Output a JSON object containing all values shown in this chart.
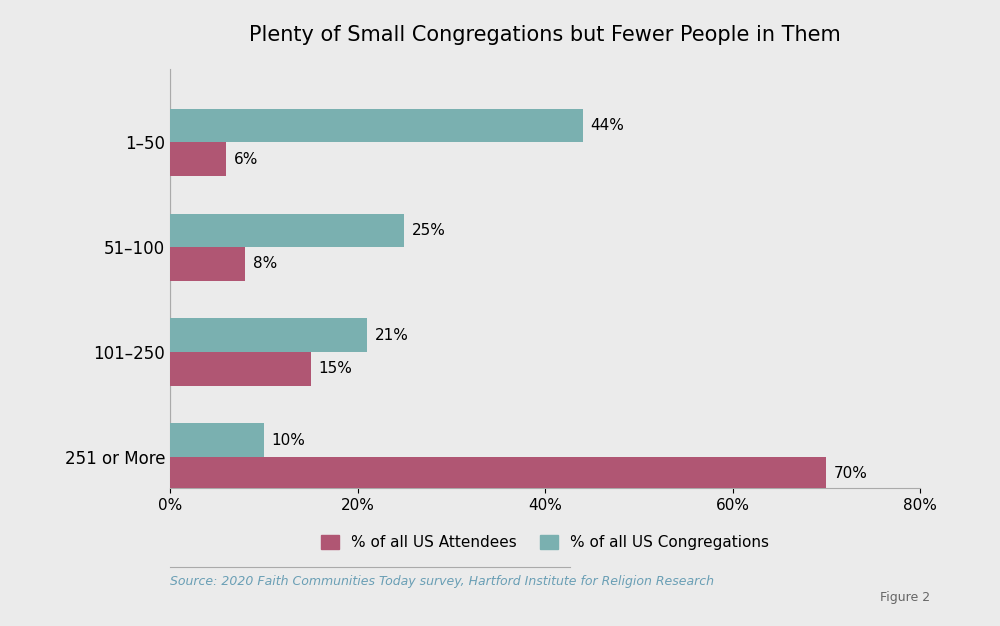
{
  "title": "Plenty of Small Congregations but Fewer People in Them",
  "categories": [
    "1–50",
    "51–100",
    "101–250",
    "251 or More"
  ],
  "attendees": [
    6,
    8,
    15,
    70
  ],
  "congregations": [
    44,
    25,
    21,
    10
  ],
  "attendees_color": "#b05673",
  "congregations_color": "#7ab0b0",
  "background_color": "#ebebeb",
  "plot_background_color": "#ebebeb",
  "bar_height": 0.32,
  "xlim": [
    0,
    80
  ],
  "xticks": [
    0,
    20,
    40,
    60,
    80
  ],
  "legend_attendees": "% of all US Attendees",
  "legend_congregations": "% of all US Congregations",
  "source_text": "Source: 2020 Faith Communities Today survey, Hartford Institute for Religion Research",
  "figure2_text": "Figure 2",
  "title_fontsize": 15,
  "label_fontsize": 12,
  "tick_fontsize": 11,
  "annotation_fontsize": 11,
  "legend_fontsize": 11,
  "source_fontsize": 9
}
